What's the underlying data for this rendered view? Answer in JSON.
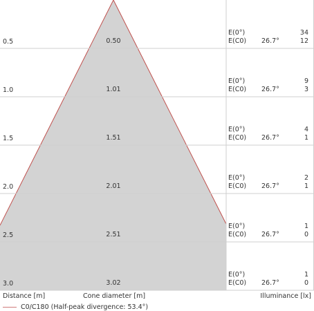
{
  "chart_data": {
    "type": "area",
    "title": "",
    "xlabel": "Distance [m]",
    "cone_label": "Cone diameter [m]",
    "ylabel": "Illuminance [lx]",
    "legend_text": "C0/C180 (Half-peak divergence: 53.4°)",
    "half_peak_divergence_deg": 53.4,
    "rows": [
      {
        "distance": "0.5",
        "diameter": "0.50",
        "angle": "26.7°",
        "e0": "34",
        "ec0": "12"
      },
      {
        "distance": "1.0",
        "diameter": "1.01",
        "angle": "26.7°",
        "e0": "9",
        "ec0": "3"
      },
      {
        "distance": "1.5",
        "diameter": "1.51",
        "angle": "26.7°",
        "e0": "4",
        "ec0": "1"
      },
      {
        "distance": "2.0",
        "diameter": "2.01",
        "angle": "26.7°",
        "e0": "2",
        "ec0": "1"
      },
      {
        "distance": "2.5",
        "diameter": "2.51",
        "angle": "26.7°",
        "e0": "1",
        "ec0": "0"
      },
      {
        "distance": "3.0",
        "diameter": "3.02",
        "angle": "26.7°",
        "e0": "1",
        "ec0": "0"
      }
    ],
    "e0_label": "E(0°)",
    "ec0_label": "E(C0)",
    "cone_fill": "#d3d3d3",
    "cone_stroke": "#c0504d",
    "grid_color": "#cfcfcf"
  }
}
